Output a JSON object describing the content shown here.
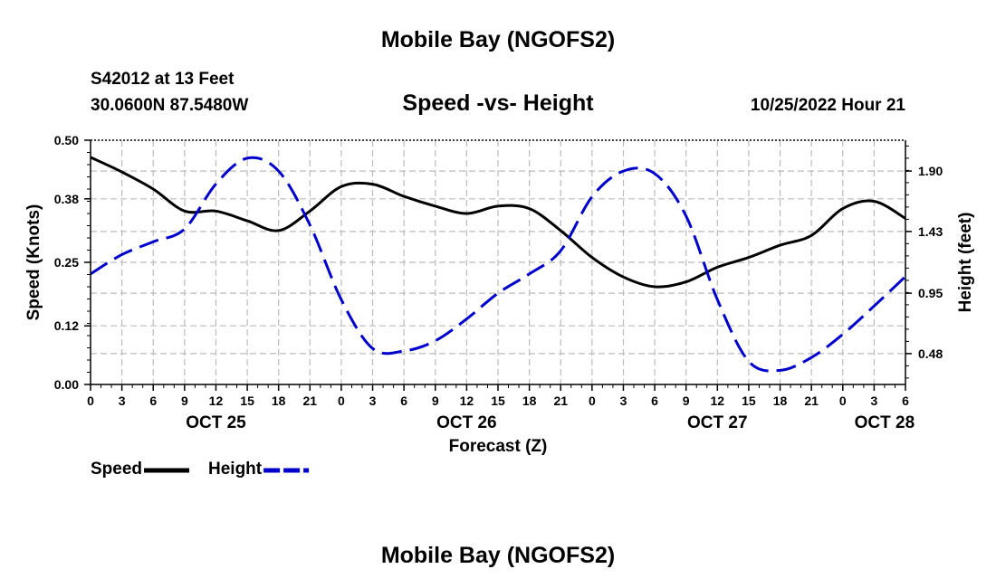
{
  "header": {
    "title": "Mobile Bay (NGOFS2)",
    "station": "S42012 at 13 Feet",
    "coords": "30.0600N  87.5480W",
    "subtitle": "Speed -vs- Height",
    "datetime": "10/25/2022 Hour 21"
  },
  "footer": {
    "title": "Mobile Bay (NGOFS2)"
  },
  "colors": {
    "speed": "#000000",
    "height": "#0000cc",
    "grid": "#bbbbbb"
  },
  "chart_data": {
    "type": "line",
    "title": "Speed -vs- Height",
    "xlabel": "Forecast (Z)",
    "ylabel": "Speed (Knots)",
    "y2label": "Height (feet)",
    "xlim": [
      0,
      78
    ],
    "ylim": [
      0,
      0.5
    ],
    "y2lim": [
      0.24,
      2.14
    ],
    "x_ticks": [
      0,
      3,
      6,
      9,
      12,
      15,
      18,
      21,
      24,
      27,
      30,
      33,
      36,
      39,
      42,
      45,
      48,
      51,
      54,
      57,
      60,
      63,
      66,
      69,
      72,
      75,
      78
    ],
    "x_tick_labels": [
      "0",
      "3",
      "6",
      "9",
      "12",
      "15",
      "18",
      "21",
      "0",
      "3",
      "6",
      "9",
      "12",
      "15",
      "18",
      "21",
      "0",
      "3",
      "6",
      "9",
      "12",
      "15",
      "18",
      "21",
      "0",
      "3",
      "6"
    ],
    "date_labels": [
      {
        "x": 12,
        "label": "OCT 25"
      },
      {
        "x": 36,
        "label": "OCT 26"
      },
      {
        "x": 60,
        "label": "OCT 27"
      },
      {
        "x": 76,
        "label": "OCT 28"
      }
    ],
    "y_ticks": [
      0,
      0.12,
      0.25,
      0.38,
      0.5
    ],
    "y_tick_labels": [
      "0.00",
      "0.12",
      "0.25",
      "0.38",
      "0.50"
    ],
    "y2_ticks": [
      0.48,
      0.95,
      1.43,
      1.9
    ],
    "y2_tick_labels": [
      "0.48",
      "0.95",
      "1.43",
      "1.90"
    ],
    "legend": [
      {
        "name": "Speed",
        "style": "solid"
      },
      {
        "name": "Height",
        "style": "dashed"
      }
    ],
    "series": [
      {
        "name": "Speed",
        "axis": "left",
        "style": "solid",
        "x": [
          0,
          3,
          6,
          9,
          12,
          15,
          18,
          21,
          24,
          27,
          30,
          33,
          36,
          39,
          42,
          45,
          48,
          51,
          54,
          57,
          60,
          63,
          66,
          69,
          72,
          75,
          78
        ],
        "values": [
          0.465,
          0.435,
          0.4,
          0.355,
          0.355,
          0.335,
          0.315,
          0.355,
          0.405,
          0.41,
          0.385,
          0.365,
          0.35,
          0.365,
          0.36,
          0.315,
          0.26,
          0.22,
          0.2,
          0.21,
          0.24,
          0.26,
          0.285,
          0.305,
          0.36,
          0.375,
          0.34
        ]
      },
      {
        "name": "Height",
        "axis": "right",
        "style": "dashed",
        "x": [
          0,
          3,
          6,
          9,
          12,
          15,
          18,
          21,
          24,
          27,
          30,
          33,
          36,
          39,
          42,
          45,
          48,
          51,
          54,
          57,
          60,
          63,
          66,
          69,
          72,
          75,
          78
        ],
        "values": [
          1.1,
          1.25,
          1.35,
          1.45,
          1.8,
          2.0,
          1.9,
          1.48,
          0.9,
          0.52,
          0.5,
          0.58,
          0.75,
          0.95,
          1.1,
          1.28,
          1.7,
          1.9,
          1.88,
          1.55,
          0.9,
          0.42,
          0.35,
          0.45,
          0.63,
          0.85,
          1.08
        ]
      }
    ]
  }
}
